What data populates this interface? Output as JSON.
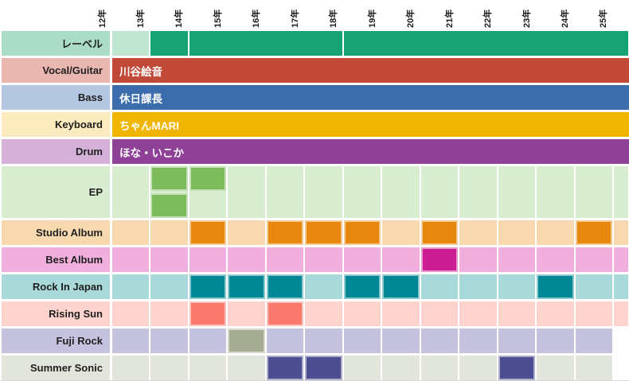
{
  "chart_data": {
    "type": "heatmap",
    "subtype": "timeline-grid-gantt",
    "title": "",
    "x_axis": {
      "tick_labels": [
        "12年",
        "13年",
        "14年",
        "15年",
        "16年",
        "17年",
        "18年",
        "19年",
        "20年",
        "21年",
        "22年",
        "23年",
        "24年",
        "25年"
      ],
      "position": "top",
      "tick_rotation_deg": -90
    },
    "legend": "none",
    "grid": "white gaps between cells",
    "rows": [
      {
        "id": "label",
        "label": "レーベル",
        "type": "segments",
        "label_bg": "#abdcc8",
        "row_bg": "#c0e5d1",
        "active_color": "#17a374",
        "segments": [
          {
            "from": "13年",
            "to": "13年"
          },
          {
            "from": "14年",
            "to": "17年"
          },
          {
            "from": "18年",
            "to": "25年"
          }
        ]
      },
      {
        "id": "vocal-guitar",
        "label": "Vocal/Guitar",
        "type": "member-bar",
        "label_bg": "#eab7b0",
        "bar_color": "#c04937",
        "bar_text": "川谷絵音",
        "span": {
          "from": "12年",
          "to": "25年"
        }
      },
      {
        "id": "bass",
        "label": "Bass",
        "type": "member-bar",
        "label_bg": "#b5c6e0",
        "bar_color": "#3b6cac",
        "bar_text": "休日課長",
        "span": {
          "from": "12年",
          "to": "25年"
        }
      },
      {
        "id": "keyboard",
        "label": "Keyboard",
        "type": "member-bar",
        "label_bg": "#fbebbe",
        "bar_color": "#f0b503",
        "bar_text": "ちゃんMARI",
        "span": {
          "from": "12年",
          "to": "25年"
        }
      },
      {
        "id": "drum",
        "label": "Drum",
        "type": "member-bar",
        "label_bg": "#d5b1da",
        "bar_color": "#8e4197",
        "bar_text": "ほな・いこか",
        "span": {
          "from": "12年",
          "to": "25年"
        }
      },
      {
        "id": "ep",
        "label": "EP",
        "type": "double-cells",
        "label_bg": "#d8edcf",
        "row_bg": "#d8edcf",
        "active_color": "#7dbb5c",
        "top_active_years": [
          "13年",
          "14年"
        ],
        "bottom_active_years": [
          "13年"
        ],
        "last_year": "25年"
      },
      {
        "id": "studio-album",
        "label": "Studio Album",
        "type": "cells",
        "label_bg": "#f8d8ae",
        "row_bg": "#f8d8ae",
        "active_color": "#e8870e",
        "active_years": [
          "14年",
          "16年",
          "17年",
          "18年",
          "20年",
          "24年"
        ],
        "last_year": "25年"
      },
      {
        "id": "best-album",
        "label": "Best Album",
        "type": "cells",
        "label_bg": "#f0afdd",
        "row_bg": "#f0afdd",
        "active_color": "#cc1d92",
        "active_years": [
          "20年"
        ],
        "last_year": "25年"
      },
      {
        "id": "rock-in-japan",
        "label": "Rock In Japan",
        "type": "cells",
        "label_bg": "#aad9d9",
        "row_bg": "#aad9d9",
        "active_color": "#008795",
        "active_years": [
          "14年",
          "15年",
          "16年",
          "18年",
          "19年",
          "23年"
        ],
        "last_year": "25年"
      },
      {
        "id": "rising-sun",
        "label": "Rising Sun",
        "type": "cells",
        "label_bg": "#fed3cd",
        "row_bg": "#fed3cd",
        "active_color": "#f97a6d",
        "active_years": [
          "14年",
          "16年"
        ],
        "last_year": "25年"
      },
      {
        "id": "fuji-rock",
        "label": "Fuji Rock",
        "type": "cells",
        "label_bg": "#c4c2de",
        "row_bg": "#c4c2de",
        "active_color": "#a6ab93",
        "active_years": [
          "15年"
        ],
        "last_year": "24年"
      },
      {
        "id": "summer-sonic",
        "label": "Summer Sonic",
        "type": "cells",
        "label_bg": "#e2e5dc",
        "row_bg": "#e2e5dc",
        "active_color": "#4d4e91",
        "active_years": [
          "16年",
          "17年",
          "22年"
        ],
        "last_year": "24年"
      }
    ]
  }
}
